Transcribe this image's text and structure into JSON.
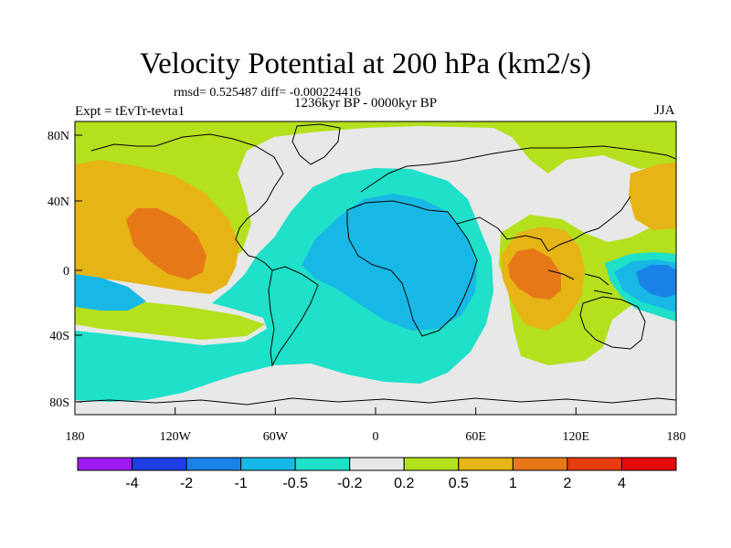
{
  "title": "Velocity Potential at 200 hPa (km2/s)",
  "stats": "rmsd= 0.525487 diff= -0.000224416",
  "period": "1236kyr BP - 0000kyr BP",
  "experiment": "Expt = tEvTr-tevta1",
  "season": "JJA",
  "map": {
    "x_ticks": [
      "180",
      "120W",
      "60W",
      "0",
      "60E",
      "120E",
      "180"
    ],
    "y_ticks": [
      "80N",
      "40N",
      "0",
      "40S",
      "80S"
    ]
  },
  "colorbar": {
    "colors": [
      "#9e1cf0",
      "#1e3ee6",
      "#1a82e6",
      "#18b8e6",
      "#1fe0c8",
      "#e8e8e8",
      "#b4e01e",
      "#e6b414",
      "#e67818",
      "#e63c10",
      "#e60a0a"
    ],
    "labels": [
      "-4",
      "-2",
      "-1",
      "-0.5",
      "-0.2",
      "0.2",
      "0.5",
      "1",
      "2",
      "4"
    ]
  },
  "palette": {
    "neutral": "#e8e8e8",
    "weak_pos": "#b4e01e",
    "mid_pos": "#e6b414",
    "strong_pos": "#e67818",
    "weak_neg": "#1fe0c8",
    "mid_neg": "#18b8e6",
    "strong_neg": "#1a82e6"
  }
}
